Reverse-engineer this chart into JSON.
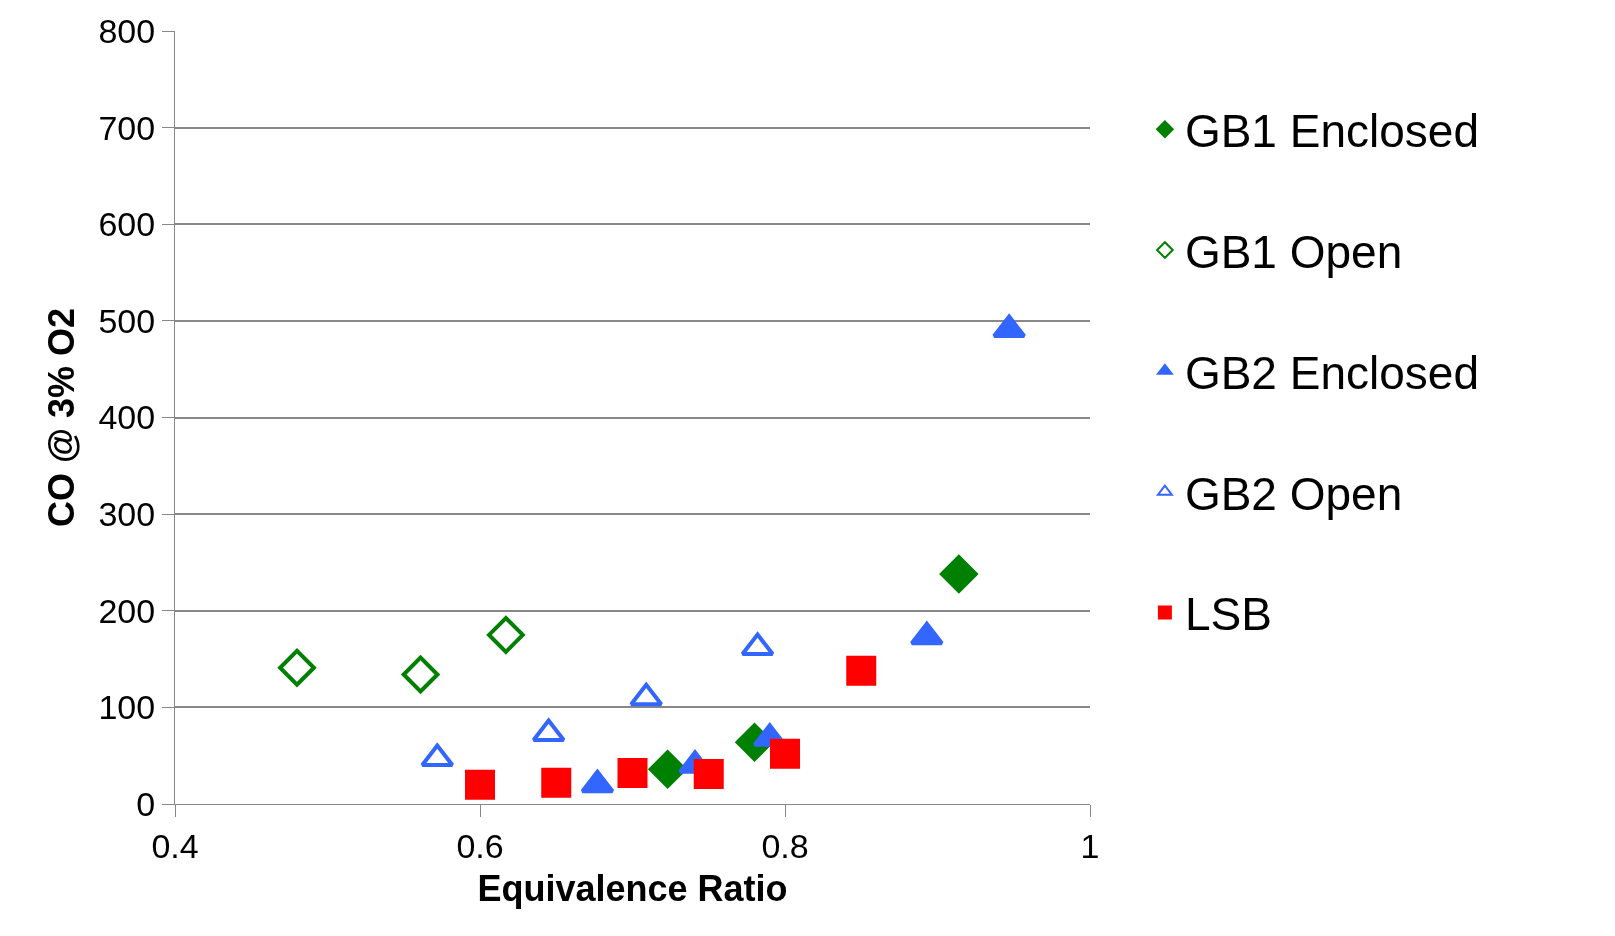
{
  "chart_data": {
    "type": "scatter",
    "xlabel": "Equivalence Ratio",
    "ylabel": "CO @ 3% O2",
    "xlim": [
      0.4,
      1
    ],
    "xticks": [
      0.4,
      0.6,
      0.8,
      1
    ],
    "ylim": [
      0,
      800
    ],
    "yticks": [
      0,
      100,
      200,
      300,
      400,
      500,
      600,
      700,
      800
    ],
    "grid": "y",
    "legend": "right",
    "series": [
      {
        "name": "GB1 Enclosed",
        "color": "#008000",
        "marker": "diamond",
        "x": [
          0.723,
          0.78,
          0.914
        ],
        "values": [
          36,
          64,
          238
        ]
      },
      {
        "name": "GB1 Open",
        "color": "#008000",
        "marker": "diamond-open",
        "x": [
          0.48,
          0.561,
          0.617
        ],
        "values": [
          141,
          134,
          175
        ]
      },
      {
        "name": "GB2 Enclosed",
        "color": "#3366ff",
        "marker": "triangle",
        "x": [
          0.677,
          0.741,
          0.79,
          0.893,
          0.947
        ],
        "values": [
          20,
          40,
          68,
          173,
          491
        ]
      },
      {
        "name": "GB2 Open",
        "color": "#3366ff",
        "marker": "triangle-open",
        "x": [
          0.572,
          0.645,
          0.709,
          0.782
        ],
        "values": [
          47,
          73,
          110,
          162
        ]
      },
      {
        "name": "LSB",
        "color": "#ff0000",
        "marker": "square",
        "x": [
          0.6,
          0.65,
          0.7,
          0.75,
          0.8,
          0.85
        ],
        "values": [
          20,
          22,
          32,
          31,
          52,
          138
        ]
      }
    ]
  }
}
